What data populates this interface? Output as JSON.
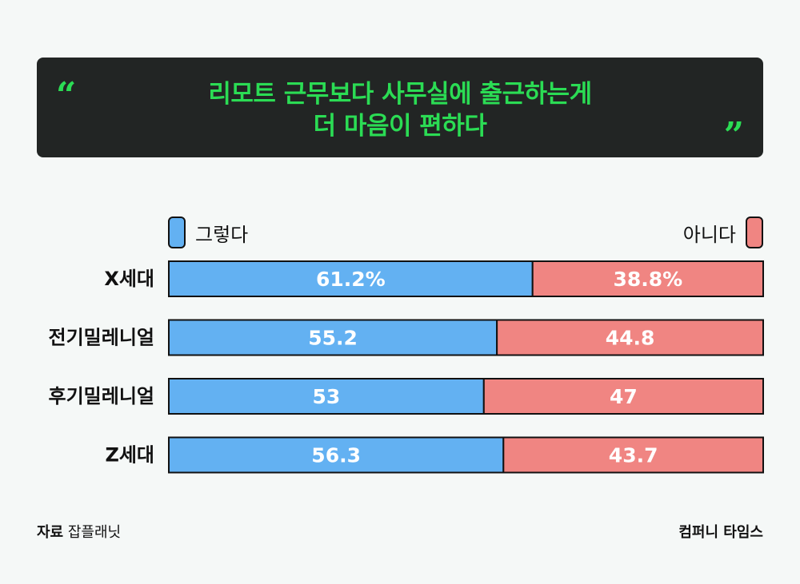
{
  "banner": {
    "title_line1": "리모트 근무보다 사무실에 출근하는게",
    "title_line2": "더 마음이 편하다",
    "quote_open": "“",
    "quote_close": "”"
  },
  "legend": {
    "yes_label": "그렇다",
    "no_label": "아니다"
  },
  "colors": {
    "yes": "#63b1f2",
    "no": "#f08582",
    "title": "#2bdc54",
    "banner_bg": "#222524"
  },
  "chart_data": {
    "type": "bar",
    "stacked": true,
    "orientation": "horizontal",
    "categories": [
      "X세대",
      "전기밀레니얼",
      "후기밀레니얼",
      "Z세대"
    ],
    "series": [
      {
        "name": "그렇다",
        "values": [
          61.2,
          55.2,
          53,
          56.3
        ],
        "labels": [
          "61.2%",
          "55.2",
          "53",
          "56.3"
        ]
      },
      {
        "name": "아니다",
        "values": [
          38.8,
          44.8,
          47,
          43.7
        ],
        "labels": [
          "38.8%",
          "44.8",
          "47",
          "43.7"
        ]
      }
    ],
    "xlim": [
      0,
      100
    ]
  },
  "footer": {
    "source_prefix": "자료",
    "source_name": "잡플래닛",
    "brand": "컴퍼니 타임스"
  }
}
